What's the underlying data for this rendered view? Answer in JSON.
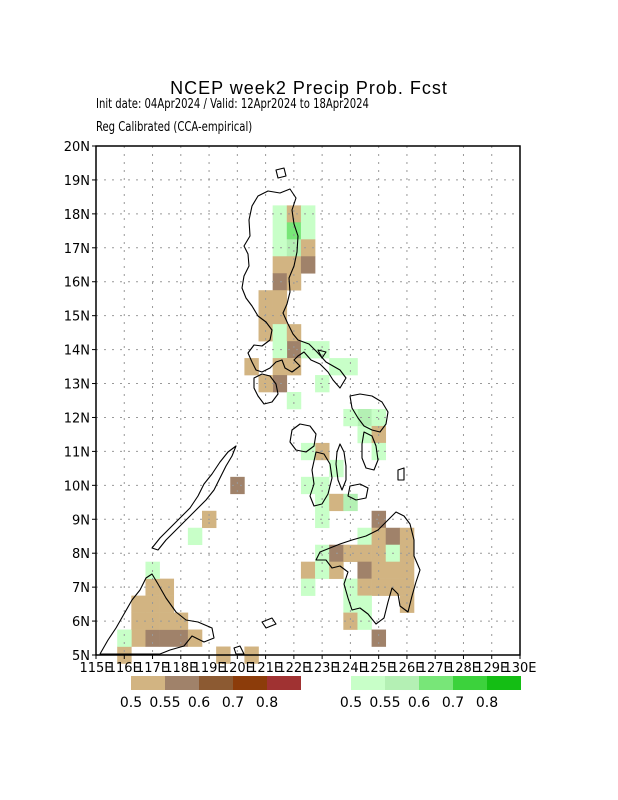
{
  "title": "NCEP week2 Precip Prob. Fcst",
  "subtitle_line1": "Init date: 04Apr2024 / Valid: 12Apr2024 to 18Apr2024",
  "subtitle_line2": "Reg Calibrated (CCA-empirical)",
  "axes": {
    "lat_labels": [
      "20N",
      "19N",
      "18N",
      "17N",
      "16N",
      "15N",
      "14N",
      "13N",
      "12N",
      "11N",
      "10N",
      "9N",
      "8N",
      "7N",
      "6N",
      "5N"
    ],
    "lon_labels": [
      "115E",
      "116E",
      "117E",
      "118E",
      "119E",
      "120E",
      "121E",
      "122E",
      "123E",
      "124E",
      "125E",
      "126E",
      "127E",
      "128E",
      "129E",
      "130E"
    ],
    "lat_range": [
      5,
      20
    ],
    "lon_range": [
      115,
      130
    ],
    "grid": "dotted"
  },
  "colors": {
    "dry": [
      "#d2b482",
      "#a0826a",
      "#8c5a32",
      "#8c3c0a",
      "#a03232"
    ],
    "wet": [
      "#c8ffc8",
      "#b4f0b4",
      "#78e678",
      "#3cd23c",
      "#14be14"
    ]
  },
  "legend": {
    "dry_labels": [
      "0.5",
      "0.55",
      "0.6",
      "0.7",
      "0.8"
    ],
    "wet_labels": [
      "0.5",
      "0.55",
      "0.6",
      "0.7",
      "0.8"
    ]
  },
  "chart_data": {
    "type": "heatmap",
    "title": "NCEP week2 Precip Prob. Fcst",
    "cell_size_deg": 0.5,
    "levels_note": "d1-d5 below-normal (dry) probability classes, w1-w5 above-normal (wet) classes",
    "cells": [
      {
        "lon": 119.5,
        "lat": 5.0,
        "c": "d1"
      },
      {
        "lon": 116.0,
        "lat": 5.0,
        "c": "d1"
      },
      {
        "lon": 116.5,
        "lat": 5.5,
        "c": "d1"
      },
      {
        "lon": 117.0,
        "lat": 5.5,
        "c": "d2"
      },
      {
        "lon": 117.5,
        "lat": 5.5,
        "c": "d2"
      },
      {
        "lon": 118.0,
        "lat": 5.5,
        "c": "d2"
      },
      {
        "lon": 118.5,
        "lat": 5.5,
        "c": "d1"
      },
      {
        "lon": 116.0,
        "lat": 5.5,
        "c": "w1"
      },
      {
        "lon": 116.5,
        "lat": 6.0,
        "c": "d1"
      },
      {
        "lon": 117.0,
        "lat": 6.0,
        "c": "d1"
      },
      {
        "lon": 117.5,
        "lat": 6.0,
        "c": "d1"
      },
      {
        "lon": 118.0,
        "lat": 6.0,
        "c": "d1"
      },
      {
        "lon": 116.5,
        "lat": 6.5,
        "c": "d1"
      },
      {
        "lon": 117.0,
        "lat": 6.5,
        "c": "d1"
      },
      {
        "lon": 117.5,
        "lat": 6.5,
        "c": "d1"
      },
      {
        "lon": 117.0,
        "lat": 7.0,
        "c": "d1"
      },
      {
        "lon": 117.5,
        "lat": 7.0,
        "c": "d1"
      },
      {
        "lon": 117.0,
        "lat": 7.5,
        "c": "w1"
      },
      {
        "lon": 119.0,
        "lat": 9.0,
        "c": "d1"
      },
      {
        "lon": 118.5,
        "lat": 8.5,
        "c": "w1"
      },
      {
        "lon": 120.0,
        "lat": 10.0,
        "c": "d2"
      },
      {
        "lon": 120.5,
        "lat": 5.0,
        "c": "d1"
      },
      {
        "lon": 121.5,
        "lat": 18.0,
        "c": "w1"
      },
      {
        "lon": 122.0,
        "lat": 18.0,
        "c": "d1"
      },
      {
        "lon": 122.5,
        "lat": 18.0,
        "c": "w1"
      },
      {
        "lon": 121.5,
        "lat": 17.5,
        "c": "w1"
      },
      {
        "lon": 122.0,
        "lat": 17.5,
        "c": "w3"
      },
      {
        "lon": 122.5,
        "lat": 17.5,
        "c": "w1"
      },
      {
        "lon": 121.5,
        "lat": 17.0,
        "c": "w1"
      },
      {
        "lon": 122.0,
        "lat": 17.0,
        "c": "w2"
      },
      {
        "lon": 122.5,
        "lat": 17.0,
        "c": "d1"
      },
      {
        "lon": 121.5,
        "lat": 16.5,
        "c": "d1"
      },
      {
        "lon": 122.0,
        "lat": 16.5,
        "c": "d1"
      },
      {
        "lon": 122.5,
        "lat": 16.5,
        "c": "d2"
      },
      {
        "lon": 121.5,
        "lat": 16.0,
        "c": "d2"
      },
      {
        "lon": 122.0,
        "lat": 16.0,
        "c": "d1"
      },
      {
        "lon": 121.0,
        "lat": 15.5,
        "c": "d1"
      },
      {
        "lon": 121.5,
        "lat": 15.5,
        "c": "d1"
      },
      {
        "lon": 121.0,
        "lat": 15.0,
        "c": "d1"
      },
      {
        "lon": 121.5,
        "lat": 15.0,
        "c": "d1"
      },
      {
        "lon": 121.0,
        "lat": 14.5,
        "c": "d1"
      },
      {
        "lon": 121.5,
        "lat": 14.5,
        "c": "w1"
      },
      {
        "lon": 122.0,
        "lat": 14.5,
        "c": "d1"
      },
      {
        "lon": 122.0,
        "lat": 14.0,
        "c": "d2"
      },
      {
        "lon": 121.5,
        "lat": 14.0,
        "c": "w1"
      },
      {
        "lon": 122.5,
        "lat": 14.0,
        "c": "w1"
      },
      {
        "lon": 123.0,
        "lat": 14.0,
        "c": "w1"
      },
      {
        "lon": 120.5,
        "lat": 13.5,
        "c": "d1"
      },
      {
        "lon": 121.5,
        "lat": 13.5,
        "c": "d1"
      },
      {
        "lon": 122.0,
        "lat": 13.5,
        "c": "d1"
      },
      {
        "lon": 121.5,
        "lat": 13.0,
        "c": "d2"
      },
      {
        "lon": 121.0,
        "lat": 13.0,
        "c": "d1"
      },
      {
        "lon": 122.0,
        "lat": 12.5,
        "c": "w1"
      },
      {
        "lon": 123.5,
        "lat": 13.5,
        "c": "w1"
      },
      {
        "lon": 123.0,
        "lat": 13.0,
        "c": "w1"
      },
      {
        "lon": 124.0,
        "lat": 13.5,
        "c": "w1"
      },
      {
        "lon": 124.5,
        "lat": 12.0,
        "c": "w2"
      },
      {
        "lon": 125.0,
        "lat": 12.0,
        "c": "w1"
      },
      {
        "lon": 124.0,
        "lat": 12.0,
        "c": "w1"
      },
      {
        "lon": 124.5,
        "lat": 11.5,
        "c": "w1"
      },
      {
        "lon": 125.0,
        "lat": 11.5,
        "c": "d1"
      },
      {
        "lon": 123.0,
        "lat": 11.0,
        "c": "d1"
      },
      {
        "lon": 122.5,
        "lat": 11.0,
        "c": "w1"
      },
      {
        "lon": 123.5,
        "lat": 10.5,
        "c": "w1"
      },
      {
        "lon": 125.0,
        "lat": 11.0,
        "c": "w1"
      },
      {
        "lon": 122.5,
        "lat": 10.0,
        "c": "w1"
      },
      {
        "lon": 123.0,
        "lat": 10.0,
        "c": "w1"
      },
      {
        "lon": 123.0,
        "lat": 9.5,
        "c": "w1"
      },
      {
        "lon": 123.5,
        "lat": 9.5,
        "c": "d1"
      },
      {
        "lon": 124.0,
        "lat": 9.5,
        "c": "w2"
      },
      {
        "lon": 123.0,
        "lat": 9.0,
        "c": "w1"
      },
      {
        "lon": 125.0,
        "lat": 9.0,
        "c": "d2"
      },
      {
        "lon": 124.5,
        "lat": 8.5,
        "c": "w1"
      },
      {
        "lon": 125.0,
        "lat": 8.5,
        "c": "d1"
      },
      {
        "lon": 125.5,
        "lat": 8.5,
        "c": "d2"
      },
      {
        "lon": 126.0,
        "lat": 8.5,
        "c": "d1"
      },
      {
        "lon": 123.0,
        "lat": 8.0,
        "c": "w1"
      },
      {
        "lon": 123.5,
        "lat": 8.0,
        "c": "d2"
      },
      {
        "lon": 124.0,
        "lat": 8.0,
        "c": "d1"
      },
      {
        "lon": 124.5,
        "lat": 8.0,
        "c": "d1"
      },
      {
        "lon": 125.0,
        "lat": 8.0,
        "c": "d1"
      },
      {
        "lon": 125.5,
        "lat": 8.0,
        "c": "w1"
      },
      {
        "lon": 126.0,
        "lat": 8.0,
        "c": "d1"
      },
      {
        "lon": 122.5,
        "lat": 7.5,
        "c": "d1"
      },
      {
        "lon": 123.0,
        "lat": 7.5,
        "c": "w1"
      },
      {
        "lon": 123.5,
        "lat": 7.5,
        "c": "d1"
      },
      {
        "lon": 124.5,
        "lat": 7.5,
        "c": "d2"
      },
      {
        "lon": 125.0,
        "lat": 7.5,
        "c": "d1"
      },
      {
        "lon": 125.5,
        "lat": 7.5,
        "c": "d1"
      },
      {
        "lon": 126.0,
        "lat": 7.5,
        "c": "d1"
      },
      {
        "lon": 122.5,
        "lat": 7.0,
        "c": "w1"
      },
      {
        "lon": 124.0,
        "lat": 7.0,
        "c": "w1"
      },
      {
        "lon": 124.5,
        "lat": 7.0,
        "c": "d1"
      },
      {
        "lon": 125.0,
        "lat": 7.0,
        "c": "d1"
      },
      {
        "lon": 125.5,
        "lat": 7.0,
        "c": "d1"
      },
      {
        "lon": 126.0,
        "lat": 7.0,
        "c": "d1"
      },
      {
        "lon": 124.0,
        "lat": 6.5,
        "c": "w1"
      },
      {
        "lon": 124.5,
        "lat": 6.5,
        "c": "w1"
      },
      {
        "lon": 126.0,
        "lat": 6.5,
        "c": "d1"
      },
      {
        "lon": 124.0,
        "lat": 6.0,
        "c": "d1"
      },
      {
        "lon": 124.5,
        "lat": 6.0,
        "c": "w1"
      },
      {
        "lon": 125.0,
        "lat": 5.5,
        "c": "d2"
      }
    ]
  }
}
